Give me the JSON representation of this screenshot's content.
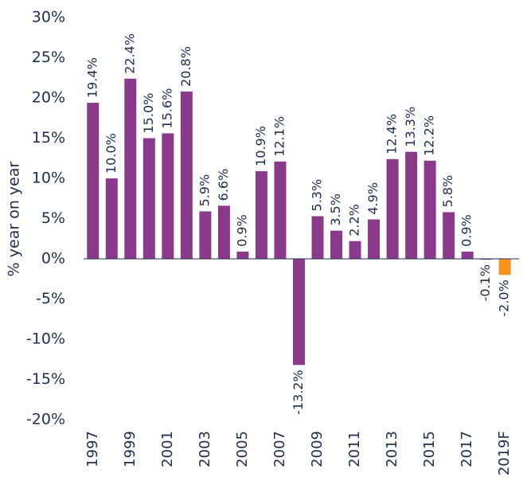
{
  "chart_data": {
    "type": "bar",
    "y_label": "% year on year",
    "categories": [
      "1997",
      null,
      "1999",
      null,
      "2001",
      null,
      "2003",
      null,
      "2005",
      null,
      "2007",
      null,
      "2009",
      null,
      "2011",
      null,
      "2013",
      null,
      "2015",
      null,
      "2017",
      null,
      "2019F"
    ],
    "values": [
      19.4,
      10.0,
      22.4,
      15.0,
      15.6,
      20.8,
      5.9,
      6.6,
      0.9,
      10.9,
      12.1,
      -13.2,
      5.3,
      3.5,
      2.2,
      4.9,
      12.4,
      13.3,
      12.2,
      5.8,
      0.9,
      -0.1,
      -2.0
    ],
    "value_labels": [
      "19.4%",
      "10.0%",
      "22.4%",
      "15.0%",
      "15.6%",
      "20.8%",
      "5.9%",
      "6.6%",
      "0.9%",
      "10.9%",
      "12.1%",
      "-13.2%",
      "5.3%",
      "3.5%",
      "2.2%",
      "4.9%",
      "12.4%",
      "13.3%",
      "12.2%",
      "5.8%",
      "0.9%",
      "-0.1%",
      "-2.0%"
    ],
    "colors": [
      "#8b3a8b",
      "#8b3a8b",
      "#8b3a8b",
      "#8b3a8b",
      "#8b3a8b",
      "#8b3a8b",
      "#8b3a8b",
      "#8b3a8b",
      "#8b3a8b",
      "#8b3a8b",
      "#8b3a8b",
      "#8b3a8b",
      "#8b3a8b",
      "#8b3a8b",
      "#8b3a8b",
      "#8b3a8b",
      "#8b3a8b",
      "#8b3a8b",
      "#8b3a8b",
      "#8b3a8b",
      "#8b3a8b",
      "#8b3a8b",
      "#f7941d"
    ],
    "ylim": [
      -20,
      30
    ],
    "yticks": [
      {
        "value": -20,
        "label": "-20%"
      },
      {
        "value": -15,
        "label": "-15%"
      },
      {
        "value": -10,
        "label": "-10%"
      },
      {
        "value": -5,
        "label": "-5%"
      },
      {
        "value": 0,
        "label": "0%"
      },
      {
        "value": 5,
        "label": "5%"
      },
      {
        "value": 10,
        "label": "10%"
      },
      {
        "value": 15,
        "label": "15%"
      },
      {
        "value": 20,
        "label": "20%"
      },
      {
        "value": 25,
        "label": "25%"
      },
      {
        "value": 30,
        "label": "30%"
      }
    ],
    "grid": false
  }
}
